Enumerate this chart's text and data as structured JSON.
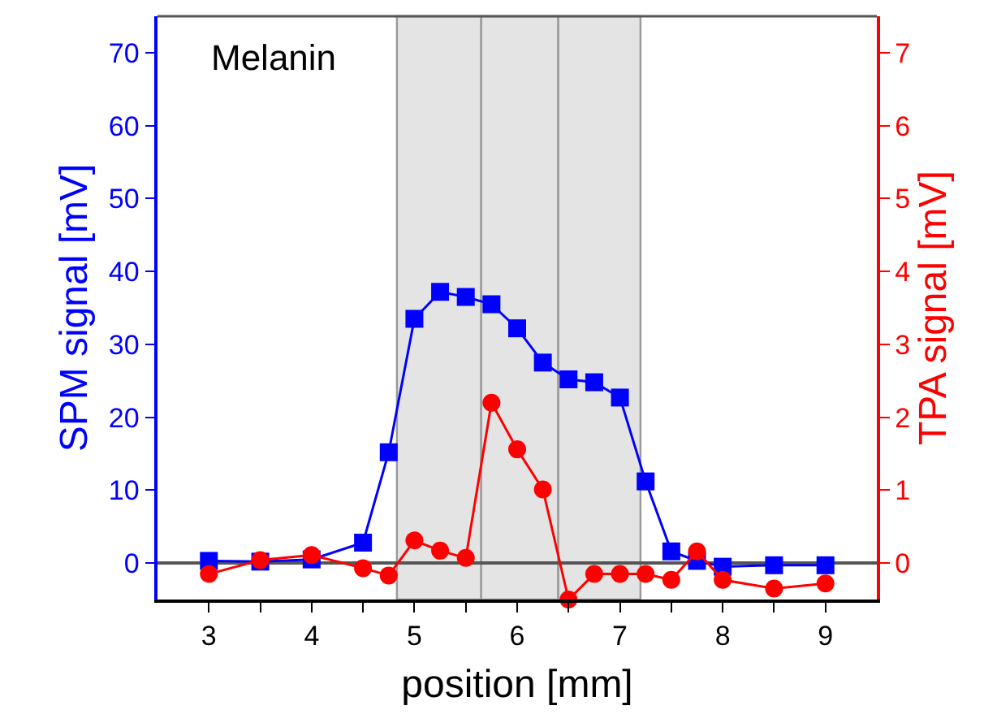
{
  "chart_data": {
    "type": "line",
    "xlabel": "position [mm]",
    "ylabel": "SPM signal [mV]",
    "y2label": "TPA signal [mV]",
    "x": [
      3,
      3.5,
      4,
      4.5,
      4.75,
      5,
      5.25,
      5.5,
      5.75,
      6,
      6.25,
      6.5,
      6.75,
      7,
      7.25,
      7.5,
      7.75,
      8,
      8.5,
      9
    ],
    "series": [
      {
        "color": "#0000ff",
        "marker": "square",
        "values": [
          0.3,
          0.2,
          0.5,
          2.8,
          15.2,
          33.5,
          37.2,
          36.5,
          35.5,
          32.2,
          27.5,
          25.2,
          24.8,
          22.7,
          11.2,
          1.6,
          0.3,
          -0.5,
          -0.3,
          -0.3
        ]
      },
      {
        "color": "#ff0000",
        "marker": "circle",
        "axis": "y2",
        "values": [
          -0.15,
          0.04,
          0.11,
          -0.07,
          -0.17,
          0.31,
          0.17,
          0.07,
          2.2,
          1.56,
          1.01,
          -0.5,
          -0.15,
          -0.15,
          -0.15,
          -0.23,
          0.16,
          -0.23,
          -0.35,
          -0.28
        ]
      }
    ],
    "xlim": [
      2.5,
      9.5
    ],
    "xticks": [
      3,
      {
        "value": 3.5,
        "label": null
      },
      4,
      {
        "value": 4.5,
        "label": null
      },
      5,
      {
        "value": 5.5,
        "label": null
      },
      6,
      {
        "value": 6.5,
        "label": null
      },
      7,
      {
        "value": 7.5,
        "label": null
      },
      8,
      {
        "value": 8.5,
        "label": null
      },
      9
    ],
    "ylim": [
      -5,
      75
    ],
    "yticks": [
      0,
      10,
      20,
      30,
      40,
      50,
      60,
      70
    ],
    "y2lim": [
      -0.5,
      7.5
    ],
    "y2ticks": [
      0,
      1,
      2,
      3,
      4,
      5,
      6,
      7
    ],
    "bands": [
      {
        "axis": "x",
        "from": 4.83,
        "to": 5.65,
        "color": "#e4e4e4"
      },
      {
        "axis": "x",
        "from": 5.65,
        "to": 6.4,
        "color": "#e4e4e4"
      },
      {
        "axis": "x",
        "from": 6.4,
        "to": 7.2,
        "color": "#e4e4e4"
      }
    ],
    "ref_lines": [
      {
        "axis": "y",
        "value": 0,
        "color": "#555555"
      }
    ],
    "annotations": [
      "Melanin"
    ],
    "grid": false,
    "line_style": "solid"
  }
}
